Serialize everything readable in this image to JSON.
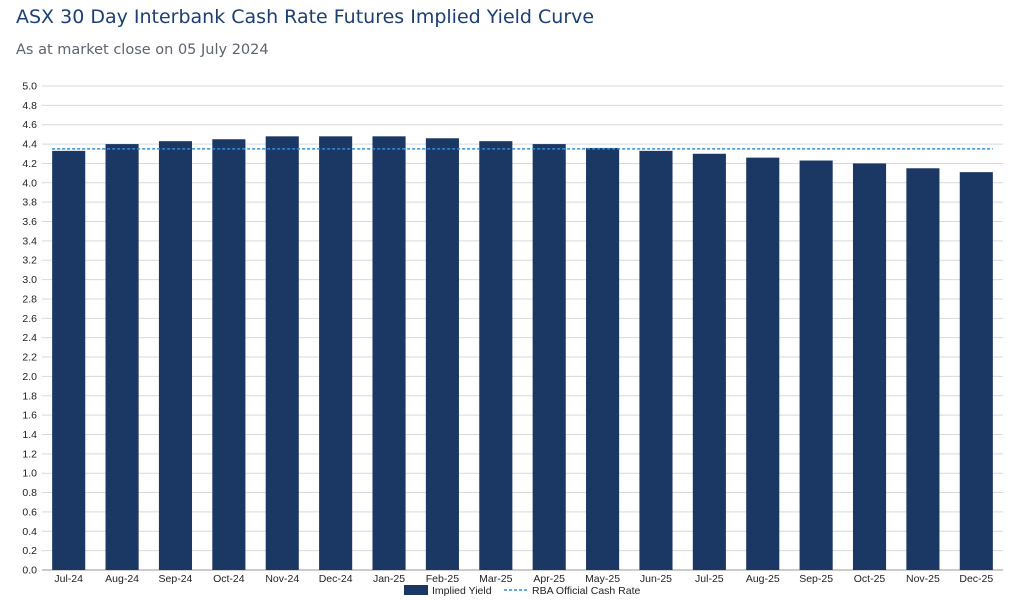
{
  "header": {
    "title": "ASX 30 Day Interbank Cash Rate Futures Implied Yield Curve",
    "subtitle": "As at market close on 05 July 2024"
  },
  "chart_data": {
    "type": "bar",
    "title": "ASX 30 Day Interbank Cash Rate Futures Implied Yield Curve",
    "subtitle": "As at market close on 05 July 2024",
    "xlabel": "",
    "ylabel": "",
    "ylim": [
      0,
      5.0
    ],
    "ytick_step": 0.2,
    "yticks": [
      "0.0",
      "0.2",
      "0.4",
      "0.6",
      "0.8",
      "1.0",
      "1.2",
      "1.4",
      "1.6",
      "1.8",
      "2.0",
      "2.2",
      "2.4",
      "2.6",
      "2.8",
      "3.0",
      "3.2",
      "3.4",
      "3.6",
      "3.8",
      "4.0",
      "4.2",
      "4.4",
      "4.6",
      "4.8",
      "5.0"
    ],
    "categories": [
      "Jul-24",
      "Aug-24",
      "Sep-24",
      "Oct-24",
      "Nov-24",
      "Dec-24",
      "Jan-25",
      "Feb-25",
      "Mar-25",
      "Apr-25",
      "May-25",
      "Jun-25",
      "Jul-25",
      "Aug-25",
      "Sep-25",
      "Oct-25",
      "Nov-25",
      "Dec-25"
    ],
    "series": [
      {
        "name": "Implied Yield",
        "type": "bar",
        "color": "#1b3764",
        "values": [
          4.33,
          4.4,
          4.43,
          4.45,
          4.48,
          4.48,
          4.48,
          4.46,
          4.43,
          4.4,
          4.36,
          4.33,
          4.3,
          4.26,
          4.23,
          4.2,
          4.15,
          4.11
        ]
      },
      {
        "name": "RBA Official Cash Rate",
        "type": "line",
        "style": "dashed",
        "color": "#2f8fd8",
        "value": 4.35
      }
    ],
    "grid": true,
    "legend": "bottom-center"
  }
}
